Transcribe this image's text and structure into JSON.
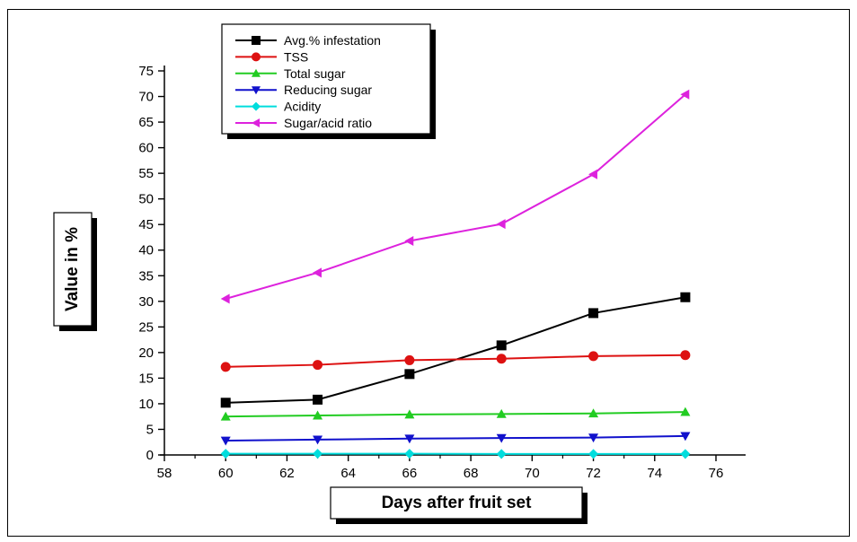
{
  "chart_data": {
    "type": "line",
    "title": "",
    "xlabel": "Days after fruit set",
    "ylabel": "Value in %",
    "xlim": [
      58,
      76
    ],
    "ylim": [
      0,
      75
    ],
    "x_ticks": [
      58,
      60,
      62,
      64,
      66,
      68,
      70,
      72,
      74,
      76
    ],
    "y_ticks": [
      0,
      5,
      10,
      15,
      20,
      25,
      30,
      35,
      40,
      45,
      50,
      55,
      60,
      65,
      70,
      75
    ],
    "x": [
      60,
      63,
      66,
      69,
      72,
      75
    ],
    "legend_position": "top-left",
    "grid": false,
    "series": [
      {
        "name": "Avg.% infestation",
        "color": "#000000",
        "marker": "square",
        "values": [
          10.2,
          10.8,
          15.8,
          21.4,
          27.7,
          30.8
        ]
      },
      {
        "name": "TSS",
        "color": "#dd1111",
        "marker": "circle",
        "values": [
          17.2,
          17.6,
          18.5,
          18.8,
          19.3,
          19.5
        ]
      },
      {
        "name": "Total sugar",
        "color": "#22cc22",
        "marker": "triangle-up",
        "values": [
          7.5,
          7.7,
          7.9,
          8.0,
          8.1,
          8.4
        ]
      },
      {
        "name": "Reducing sugar",
        "color": "#1111cc",
        "marker": "triangle-down",
        "values": [
          2.8,
          3.0,
          3.2,
          3.3,
          3.4,
          3.7
        ]
      },
      {
        "name": "Acidity",
        "color": "#00dddd",
        "marker": "diamond",
        "values": [
          0.25,
          0.25,
          0.25,
          0.2,
          0.2,
          0.2
        ]
      },
      {
        "name": "Sugar/acid ratio",
        "color": "#dd22dd",
        "marker": "triangle-left",
        "values": [
          30.5,
          35.6,
          41.8,
          45.1,
          54.8,
          70.4
        ]
      }
    ]
  }
}
